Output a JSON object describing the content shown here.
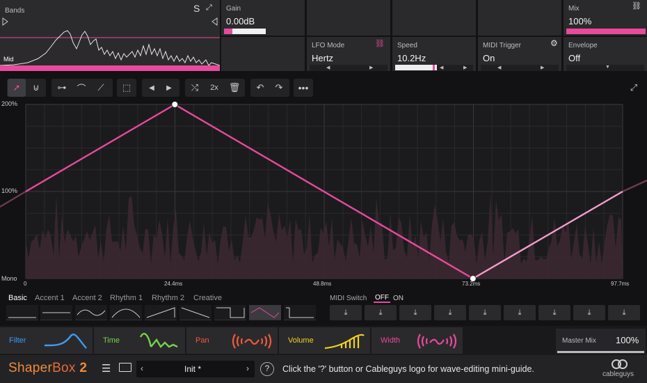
{
  "bands": {
    "title": "Bands",
    "solo": "S",
    "band_name": "Mid"
  },
  "gain": {
    "label": "Gain",
    "value": "0.00dB",
    "level": 0.2
  },
  "mix": {
    "label": "Mix",
    "value": "100%",
    "level": 1.0
  },
  "lfo_mode": {
    "label": "LFO Mode",
    "value": "Hertz"
  },
  "speed": {
    "label": "Speed",
    "value": "10.2Hz",
    "level": 0.4
  },
  "midi_trigger": {
    "label": "MIDI Trigger",
    "value": "On"
  },
  "envelope": {
    "label": "Envelope",
    "value": "Off"
  },
  "toolbar": {
    "multiply": "2x"
  },
  "graph": {
    "y_top": "200%",
    "y_mid": "100%",
    "y_bottom": "Mono",
    "x_ticks": [
      "0",
      "24.4ms",
      "48.8ms",
      "73.2ms",
      "97.7ms"
    ],
    "points": [
      {
        "t": 0,
        "v": 1.0
      },
      {
        "t": 24.4,
        "v": 2.0
      },
      {
        "t": 73.2,
        "v": 0.0
      },
      {
        "t": 97.7,
        "v": 1.0
      }
    ]
  },
  "shape_tabs": [
    "Basic",
    "Accent 1",
    "Accent 2",
    "Rhythm 1",
    "Rhythm 2",
    "Creative"
  ],
  "midi_switch": {
    "label": "MIDI Switch",
    "off": "OFF",
    "on": "ON"
  },
  "modules": [
    "Filter",
    "Time",
    "Pan",
    "Volume",
    "Width"
  ],
  "master_mix": {
    "label": "Master Mix",
    "value": "100%",
    "level": 1.0
  },
  "footer": {
    "logo_main": "Shaper",
    "logo_box": "Box",
    "logo_num": "2",
    "preset": "Init *",
    "hint": "Click the '?' button or Cableguys logo for wave-editing mini-guide.",
    "brand": "cableguys",
    "help": "?"
  },
  "colors": {
    "accent": "#e84a9c",
    "filter": "#3d9cf0",
    "time": "#7ad14a",
    "pan": "#f05a36",
    "volume": "#f2d21e",
    "width": "#e84a9c"
  }
}
